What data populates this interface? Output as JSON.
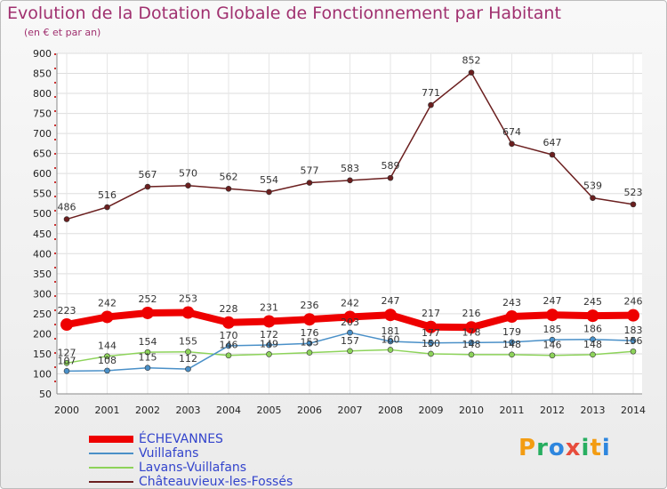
{
  "title": "Evolution de la Dotation Globale de Fonctionnement par Habitant",
  "subtitle": "(en € et par an)",
  "logo_letters": [
    "P",
    "r",
    "o",
    "x",
    "i",
    "t",
    "i"
  ],
  "logo_colors": [
    "#f39c12",
    "#27ae60",
    "#2e86de",
    "#e74c3c",
    "#27ae60",
    "#f39c12",
    "#2e86de"
  ],
  "chart_data": {
    "type": "line",
    "title": "Evolution de la Dotation Globale de Fonctionnement par Habitant",
    "ylabel": "(en € et par an)",
    "x": [
      "2000",
      "2001",
      "2002",
      "2003",
      "2004",
      "2005",
      "2006",
      "2007",
      "2008",
      "2009",
      "2010",
      "2011",
      "2012",
      "2013",
      "2014"
    ],
    "ylim": [
      50,
      900
    ],
    "yticks": [
      50,
      100,
      150,
      200,
      250,
      300,
      350,
      400,
      450,
      500,
      550,
      600,
      650,
      700,
      750,
      800,
      850,
      900
    ],
    "series": [
      {
        "name": "ÉCHEVANNES",
        "color": "#ee0000",
        "values": [
          223,
          242,
          252,
          253,
          228,
          231,
          236,
          242,
          247,
          217,
          216,
          243,
          247,
          245,
          246
        ],
        "labels": [
          "223",
          "242",
          "252",
          "253",
          "228",
          "231",
          "236",
          "242",
          "247",
          "217",
          "216",
          "243",
          "247",
          "245",
          "246"
        ]
      },
      {
        "name": "Vuillafans",
        "color": "#4a90c8",
        "values": [
          107,
          108,
          115,
          112,
          170,
          172,
          176,
          203,
          181,
          177,
          178,
          179,
          185,
          186,
          183
        ],
        "labels": [
          "107",
          "108",
          "115",
          "112",
          "170",
          "172",
          "176",
          "203",
          "181",
          "177",
          "178",
          "179",
          "185",
          "186",
          "183"
        ]
      },
      {
        "name": "Lavans-Vuillafans",
        "color": "#8dd35a",
        "values": [
          127,
          144,
          154,
          155,
          146,
          149,
          153,
          157,
          160,
          150,
          148,
          148,
          146,
          148,
          156
        ],
        "labels": [
          "127",
          "144",
          "154",
          "155",
          "146",
          "149",
          "153",
          "157",
          "160",
          "150",
          "148",
          "148",
          "146",
          "148",
          "156"
        ]
      },
      {
        "name": "Châteauvieux-les-Fossés",
        "color": "#6b1f1f",
        "values": [
          486,
          516,
          567,
          570,
          562,
          554,
          577,
          583,
          589,
          771,
          852,
          674,
          647,
          539,
          523
        ],
        "labels": [
          "486",
          "516",
          "567",
          "570",
          "562",
          "554",
          "577",
          "583",
          "589",
          "771",
          "852",
          "674",
          "647",
          "539",
          "523"
        ]
      }
    ]
  }
}
